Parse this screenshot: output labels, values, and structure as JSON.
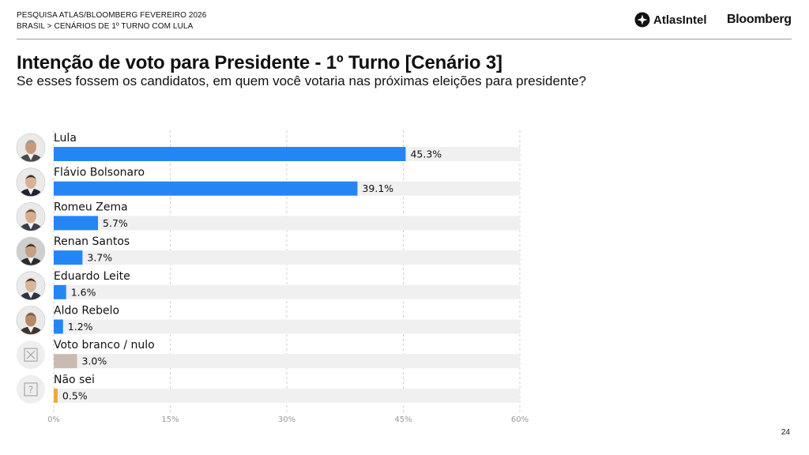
{
  "header": {
    "line1": "PESQUISA ATLAS/BLOOMBERG FEVEREIRO 2026",
    "line2": "BRASIL > CENÁRIOS DE 1º TURNO COM LULA",
    "logo_atlas": "AtlasIntel",
    "logo_bloomberg": "Bloomberg"
  },
  "page_number": "24",
  "chart_data": {
    "type": "bar",
    "orientation": "horizontal",
    "title": "Intenção de voto para Presidente - 1º Turno [Cenário 3]",
    "subtitle": "Se esses fossem os candidatos, em quem você votaria nas próximas eleições para presidente?",
    "categories": [
      "Lula",
      "Flávio Bolsonaro",
      "Romeu Zema",
      "Renan Santos",
      "Eduardo Leite",
      "Aldo Rebelo",
      "Voto branco / nulo",
      "Não sei"
    ],
    "values": [
      45.3,
      39.1,
      5.7,
      3.7,
      1.6,
      1.2,
      3.0,
      0.5
    ],
    "value_labels": [
      "45.3%",
      "39.1%",
      "5.7%",
      "3.7%",
      "1.6%",
      "1.2%",
      "3.0%",
      "0.5%"
    ],
    "bar_colors": [
      "#2486f5",
      "#2486f5",
      "#2486f5",
      "#2486f5",
      "#2486f5",
      "#2486f5",
      "#c9bbb1",
      "#e8ad3a"
    ],
    "track_color": "#f0f0f0",
    "icons": [
      "lula-photo-icon",
      "flavio-bolsonaro-photo-icon",
      "romeu-zema-photo-icon",
      "renan-santos-photo-icon",
      "eduardo-leite-photo-icon",
      "aldo-rebelo-photo-icon",
      "blank-null-vote-icon",
      "dont-know-icon"
    ],
    "xlim": [
      0,
      60
    ],
    "xticks": [
      0,
      15,
      30,
      45,
      60
    ],
    "xtick_labels": [
      "0%",
      "15%",
      "30%",
      "45%",
      "60%"
    ],
    "grid": true
  }
}
